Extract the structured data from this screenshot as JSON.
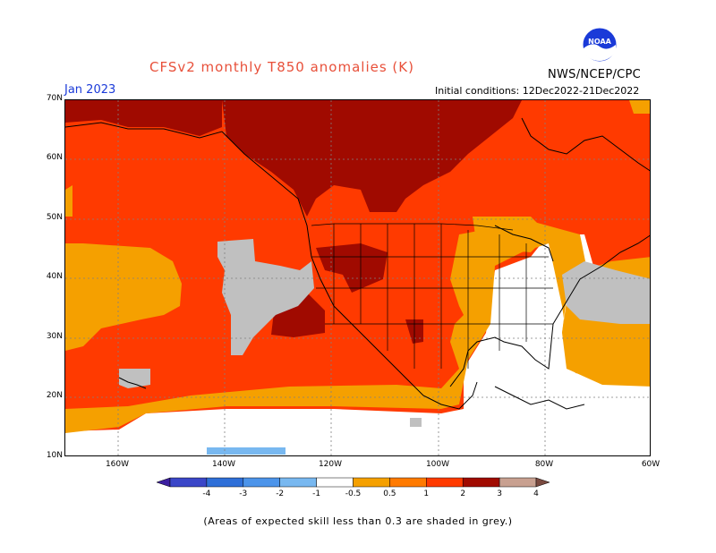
{
  "title": "CFSv2 monthly T850 anomalies (K)",
  "agency": "NWS/NCEP/CPC",
  "logo_text": "NOAA",
  "month": "Jan 2023",
  "initial_conditions": "Initial conditions: 12Dec2022-21Dec2022",
  "footnote": "(Areas of expected skill less than 0.3 are shaded in grey.)",
  "lat_labels": [
    "70N",
    "60N",
    "50N",
    "40N",
    "30N",
    "20N",
    "10N"
  ],
  "lon_labels": [
    "160W",
    "140W",
    "120W",
    "100W",
    "80W",
    "60W"
  ],
  "colorbar": {
    "labels": [
      "-4",
      "-3",
      "-2",
      "-1",
      "-0.5",
      "0.5",
      "1",
      "2",
      "3",
      "4"
    ],
    "colors": [
      "#3c1ea0",
      "#3a46c8",
      "#2e6fd8",
      "#4c94ea",
      "#78b8f0",
      "#ffffff",
      "#f5a000",
      "#ff7a00",
      "#ff3a00",
      "#a00a00",
      "#c8a090",
      "#7a4a40"
    ]
  },
  "legend_skill_grey": "#c0c0c0",
  "chart_data": {
    "type": "heatmap",
    "variable": "T850 anomaly (K)",
    "region": {
      "lat_range": [
        10,
        70
      ],
      "lon_range": [
        -170,
        -60
      ]
    },
    "levels": [
      -4,
      -3,
      -2,
      -1,
      -0.5,
      0.5,
      1,
      2,
      3,
      4
    ],
    "dominant_patterns": [
      {
        "area": "Alaska / northwestern Canada",
        "range": "2-3",
        "color": "#a00a00"
      },
      {
        "area": "Northeast Pacific / Canada / US West",
        "range": "1-2",
        "color": "#ff3a00"
      },
      {
        "area": "Southern Rockies / Four Corners",
        "range": "2-3",
        "color": "#a00a00"
      },
      {
        "area": "Central US edge / subtropical Pacific",
        "range": "0.5-1",
        "color": "#f5a000"
      },
      {
        "area": "Eastern US / Gulf / Caribbean",
        "range": "-0.5-0.5",
        "color": "#ffffff"
      },
      {
        "area": "Far southern Pacific strip",
        "range": "-1--0.5",
        "color": "#78b8f0"
      },
      {
        "area": "Low-skill areas (grey)",
        "range": "skill < 0.3",
        "color": "#c0c0c0"
      }
    ]
  }
}
